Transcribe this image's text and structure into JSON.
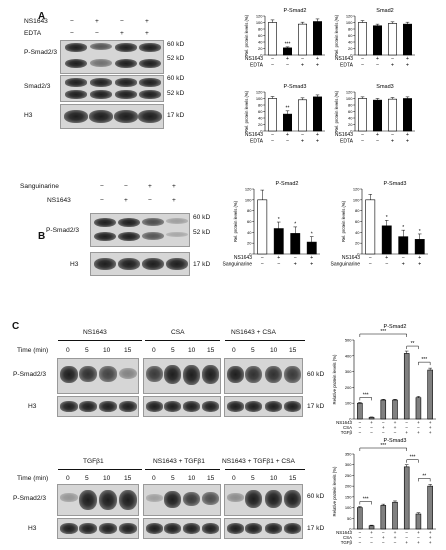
{
  "panels": {
    "a": "A",
    "b": "B",
    "c": "C"
  },
  "markers": {
    "kd60": "60 kD",
    "kd52": "52 kD",
    "kd17": "17 kD"
  },
  "symbols": {
    "minus": "−",
    "plus": "+"
  },
  "panel_a": {
    "treatments": [
      "NS1643",
      "EDTA"
    ],
    "signs": [
      [
        "−",
        "+",
        "−",
        "+"
      ],
      [
        "−",
        "−",
        "+",
        "+"
      ]
    ],
    "blots": [
      "P-Smad2/3",
      "Smad2/3",
      "H3"
    ]
  },
  "panel_b": {
    "treatments": [
      "Sanguinarine",
      "NS1643"
    ],
    "signs": [
      [
        "−",
        "−",
        "+",
        "+"
      ],
      [
        "−",
        "+",
        "−",
        "+"
      ]
    ],
    "blots": [
      "P-Smad2/3",
      "H3"
    ]
  },
  "panel_c": {
    "time_label": "Time (min)",
    "blots": [
      "P-Smad2/3",
      "H3"
    ],
    "groups_top": [
      "NS1643",
      "CSA",
      "NS1643 + CSA"
    ],
    "groups_bottom": [
      "TGFβ1",
      "NS1643 + TGFβ1",
      "NS1643 + TGFβ1 + CSA"
    ],
    "times": [
      "0",
      "5",
      "10",
      "15"
    ]
  },
  "chart_data": [
    {
      "type": "bar",
      "title": "P-Smad2",
      "ylabel": "Rel. protein levels (%)",
      "ylim": [
        0,
        120
      ],
      "yticks": [
        0,
        20,
        40,
        60,
        80,
        100,
        120
      ],
      "conditions": [
        "NS1643",
        "EDTA"
      ],
      "signs": [
        [
          "−",
          "+",
          "−",
          "+"
        ],
        [
          "−",
          "−",
          "+",
          "+"
        ]
      ],
      "values": [
        100,
        22,
        95,
        103
      ],
      "errors": [
        8,
        3,
        6,
        8
      ],
      "bar_colors": [
        "#ffffff",
        "#000000",
        "#ffffff",
        "#000000"
      ],
      "annotations": [
        "",
        "***",
        "",
        ""
      ]
    },
    {
      "type": "bar",
      "title": "Smad2",
      "ylabel": "Rel. protein levels (%)",
      "ylim": [
        0,
        120
      ],
      "yticks": [
        0,
        20,
        40,
        60,
        80,
        100,
        120
      ],
      "conditions": [
        "NS1643",
        "EDTA"
      ],
      "signs": [
        [
          "−",
          "+",
          "−",
          "+"
        ],
        [
          "−",
          "−",
          "+",
          "+"
        ]
      ],
      "values": [
        100,
        90,
        97,
        95
      ],
      "errors": [
        6,
        5,
        5,
        6
      ],
      "bar_colors": [
        "#ffffff",
        "#000000",
        "#ffffff",
        "#000000"
      ],
      "annotations": [
        "",
        "",
        "",
        ""
      ]
    },
    {
      "type": "bar",
      "title": "P-Smad3",
      "ylabel": "Rel. protein levels (%)",
      "ylim": [
        0,
        120
      ],
      "yticks": [
        0,
        20,
        40,
        60,
        80,
        100,
        120
      ],
      "conditions": [
        "NS1643",
        "EDTA"
      ],
      "signs": [
        [
          "−",
          "+",
          "−",
          "+"
        ],
        [
          "−",
          "−",
          "+",
          "+"
        ]
      ],
      "values": [
        100,
        52,
        96,
        105
      ],
      "errors": [
        6,
        10,
        6,
        6
      ],
      "bar_colors": [
        "#ffffff",
        "#000000",
        "#ffffff",
        "#000000"
      ],
      "annotations": [
        "",
        "**",
        "",
        ""
      ]
    },
    {
      "type": "bar",
      "title": "Smad3",
      "ylabel": "Rel. protein levels (%)",
      "ylim": [
        0,
        120
      ],
      "yticks": [
        0,
        20,
        40,
        60,
        80,
        100,
        120
      ],
      "conditions": [
        "NS1643",
        "EDTA"
      ],
      "signs": [
        [
          "−",
          "+",
          "−",
          "+"
        ],
        [
          "−",
          "−",
          "+",
          "+"
        ]
      ],
      "values": [
        100,
        95,
        98,
        100
      ],
      "errors": [
        5,
        5,
        5,
        5
      ],
      "bar_colors": [
        "#ffffff",
        "#000000",
        "#ffffff",
        "#000000"
      ],
      "annotations": [
        "",
        "",
        "",
        ""
      ]
    },
    {
      "type": "bar",
      "title": "P-Smad2",
      "ylabel": "Rel. protein levels (%)",
      "ylim": [
        0,
        120
      ],
      "yticks": [
        0,
        20,
        40,
        60,
        80,
        100,
        120
      ],
      "conditions": [
        "NS1643",
        "Sanguinarine"
      ],
      "signs": [
        [
          "−",
          "+",
          "−",
          "+"
        ],
        [
          "−",
          "−",
          "+",
          "+"
        ]
      ],
      "values": [
        100,
        47,
        38,
        22
      ],
      "errors": [
        18,
        12,
        12,
        10
      ],
      "bar_colors": [
        "#ffffff",
        "#000000",
        "#000000",
        "#000000"
      ],
      "annotations": [
        "",
        "*",
        "*",
        "*"
      ]
    },
    {
      "type": "bar",
      "title": "P-Smad3",
      "ylabel": "Rel. protein levels (%)",
      "ylim": [
        0,
        120
      ],
      "yticks": [
        0,
        20,
        40,
        60,
        80,
        100,
        120
      ],
      "conditions": [
        "NS1643",
        "Sanguinarine"
      ],
      "signs": [
        [
          "−",
          "+",
          "−",
          "+"
        ],
        [
          "−",
          "−",
          "+",
          "+"
        ]
      ],
      "values": [
        100,
        52,
        32,
        27
      ],
      "errors": [
        10,
        10,
        12,
        10
      ],
      "bar_colors": [
        "#ffffff",
        "#000000",
        "#000000",
        "#000000"
      ],
      "annotations": [
        "",
        "*",
        "*",
        "*"
      ]
    },
    {
      "type": "bar",
      "title": "P-Smad2",
      "ylabel": "Relative protein levels (%)",
      "ylim": [
        0,
        500
      ],
      "yticks": [
        0,
        100,
        200,
        300,
        400,
        500
      ],
      "conditions": [
        "NS1643",
        "CSA",
        "TGFβ"
      ],
      "signs": [
        [
          "−",
          "+",
          "−",
          "+",
          "−",
          "+",
          "+"
        ],
        [
          "−",
          "−",
          "+",
          "+",
          "−",
          "−",
          "+"
        ],
        [
          "−",
          "−",
          "−",
          "−",
          "+",
          "+",
          "+"
        ]
      ],
      "values": [
        100,
        10,
        120,
        120,
        415,
        135,
        310
      ],
      "errors": [
        5,
        3,
        5,
        5,
        15,
        8,
        12
      ],
      "bar_colors": [
        "#808080",
        "#808080",
        "#808080",
        "#808080",
        "#808080",
        "#808080",
        "#808080"
      ],
      "brackets": [
        {
          "from": 0,
          "to": 1,
          "label": "***"
        },
        {
          "from": 0,
          "to": 4,
          "label": "***"
        },
        {
          "from": 4,
          "to": 5,
          "label": "**"
        },
        {
          "from": 5,
          "to": 6,
          "label": "***"
        }
      ]
    },
    {
      "type": "bar",
      "title": "P-Smad3",
      "ylabel": "Relative protein levels (%)",
      "ylim": [
        0,
        350
      ],
      "yticks": [
        0,
        50,
        100,
        150,
        200,
        250,
        300,
        350
      ],
      "conditions": [
        "NS1643",
        "CSA",
        "TGFβ"
      ],
      "signs": [
        [
          "−",
          "+",
          "−",
          "+",
          "−",
          "+",
          "+"
        ],
        [
          "−",
          "−",
          "+",
          "+",
          "−",
          "−",
          "+"
        ],
        [
          "−",
          "−",
          "−",
          "−",
          "+",
          "+",
          "+"
        ]
      ],
      "values": [
        100,
        15,
        110,
        125,
        290,
        70,
        200
      ],
      "errors": [
        5,
        3,
        6,
        6,
        10,
        6,
        8
      ],
      "bar_colors": [
        "#808080",
        "#808080",
        "#808080",
        "#808080",
        "#808080",
        "#808080",
        "#808080"
      ],
      "brackets": [
        {
          "from": 0,
          "to": 1,
          "label": "***"
        },
        {
          "from": 0,
          "to": 4,
          "label": "***"
        },
        {
          "from": 4,
          "to": 5,
          "label": "***"
        },
        {
          "from": 5,
          "to": 6,
          "label": "**"
        }
      ]
    }
  ]
}
